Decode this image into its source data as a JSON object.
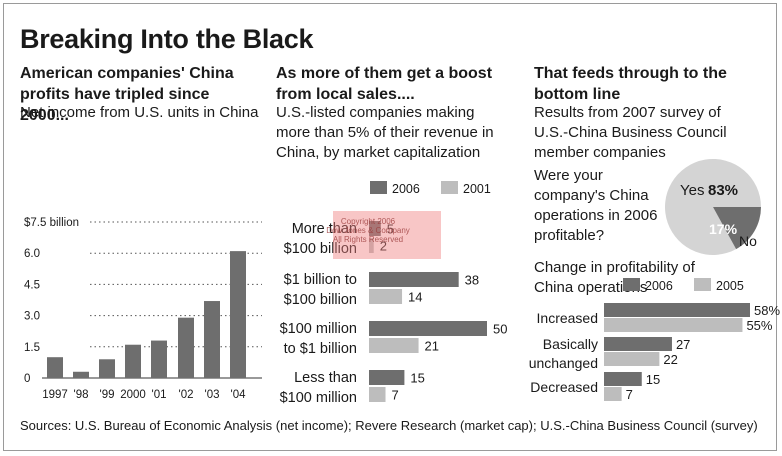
{
  "title": "Breaking Into the Black",
  "colors": {
    "dark": "#6e6e6e",
    "light": "#bdbdbd",
    "pie_light": "#d4d4d4",
    "text": "#1a1a1a"
  },
  "left_panel": {
    "heading": "American companies' China profits have tripled since 2000...",
    "subheading": "Net income from U.S. units in China"
  },
  "middle_panel": {
    "heading": "As more of them get a boost from local sales....",
    "subheading": "U.S.-listed companies making more than 5% of their revenue in China, by market capitalization",
    "watermark": "Copyright 2006 Dow Jones & Company All Rights Reserved"
  },
  "right_panel": {
    "heading": "That feeds through to the bottom line",
    "subheading": "Results from 2007 survey of U.S.-China Business Council member companies",
    "question": "Were your company's China operations in 2006 profitable?",
    "change_title": "Change in profitability of China operations"
  },
  "sources": "Sources: U.S. Bureau of Economic Analysis (net income); Revere Research (market cap); U.S.-China Business Council (survey)",
  "chart_data": [
    {
      "type": "bar",
      "title": "Net income from U.S. units in China",
      "categories": [
        "1997",
        "'98",
        "'99",
        "2000",
        "'01",
        "'02",
        "'03",
        "'04"
      ],
      "values": [
        1.0,
        0.3,
        0.9,
        1.6,
        1.8,
        2.9,
        3.7,
        6.1
      ],
      "ylim": [
        0,
        7.5
      ],
      "yticks": [
        0,
        1.5,
        3.0,
        4.5,
        6.0,
        7.5
      ],
      "ytick_labels": [
        "0",
        "1.5",
        "3.0",
        "4.5",
        "6.0",
        "$7.5 billion"
      ],
      "ylabel": "",
      "xlabel": ""
    },
    {
      "type": "bar",
      "orientation": "horizontal",
      "title": "U.S.-listed companies making more than 5% of their revenue in China, by market capitalization",
      "categories": [
        "More than $100 billion",
        "$1 billion to $100 billion",
        "$100 million to $1 billion",
        "Less than $100 million"
      ],
      "series": [
        {
          "name": "2006",
          "values": [
            5,
            38,
            50,
            15
          ]
        },
        {
          "name": "2001",
          "values": [
            2,
            14,
            21,
            7
          ]
        }
      ]
    },
    {
      "type": "pie",
      "title": "Were your company's China operations in 2006 profitable?",
      "slices": [
        {
          "label": "Yes",
          "value": 83,
          "display": "83%"
        },
        {
          "label": "No",
          "value": 17,
          "display": "17%"
        }
      ]
    },
    {
      "type": "bar",
      "orientation": "horizontal",
      "title": "Change in profitability of China operations",
      "categories": [
        "Increased",
        "Basically unchanged",
        "Decreased"
      ],
      "series": [
        {
          "name": "2006",
          "values": [
            58,
            27,
            15
          ],
          "labels": [
            "58%",
            "27",
            "15"
          ]
        },
        {
          "name": "2005",
          "values": [
            55,
            22,
            7
          ],
          "labels": [
            "55%",
            "22",
            "7"
          ]
        }
      ]
    }
  ]
}
